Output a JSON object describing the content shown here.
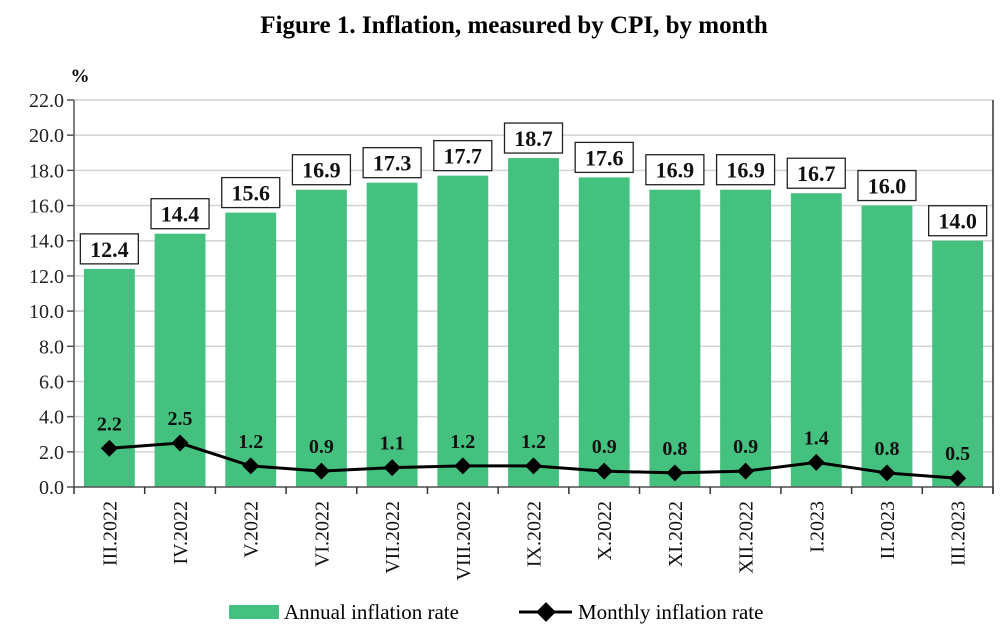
{
  "chart_data": {
    "type": "bar+line",
    "title": "Figure 1. Inflation, measured by CPI, by month",
    "ylabel": "%",
    "ylim": [
      0,
      22
    ],
    "yticks": [
      "0.0",
      "2.0",
      "4.0",
      "6.0",
      "8.0",
      "10.0",
      "12.0",
      "14.0",
      "16.0",
      "18.0",
      "20.0",
      "22.0"
    ],
    "grid": true,
    "legend_position": "bottom",
    "categories": [
      "III.2022",
      "IV.2022",
      "V.2022",
      "VI.2022",
      "VII.2022",
      "VIII.2022",
      "IX.2022",
      "X.2022",
      "XI.2022",
      "XII.2022",
      "I.2023",
      "II.2023",
      "III.2023"
    ],
    "series": [
      {
        "name": "Annual inflation rate",
        "type": "bar",
        "color": "#45c17f",
        "values": [
          12.4,
          14.4,
          15.6,
          16.9,
          17.3,
          17.7,
          18.7,
          17.6,
          16.9,
          16.9,
          16.7,
          16.0,
          14.0
        ]
      },
      {
        "name": "Monthly inflation rate",
        "type": "line",
        "color": "#000000",
        "values": [
          2.2,
          2.5,
          1.2,
          0.9,
          1.1,
          1.2,
          1.2,
          0.9,
          0.8,
          0.9,
          1.4,
          0.8,
          0.5
        ]
      }
    ]
  }
}
